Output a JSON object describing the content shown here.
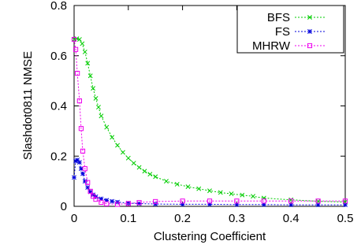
{
  "chart_data": {
    "type": "line",
    "title": "",
    "xlabel": "Clustering Coefficient",
    "ylabel": "Slashdot0811 NMSE",
    "xlim": [
      0,
      0.5
    ],
    "ylim": [
      0,
      0.8
    ],
    "xticks": [
      "0",
      "0.1",
      "0.2",
      "0.3",
      "0.4",
      "0.5"
    ],
    "yticks": [
      "0",
      "0.2",
      "0.4",
      "0.6",
      "0.8"
    ],
    "grid": false,
    "legend_position": "top-right",
    "series": [
      {
        "name": "BFS",
        "color": "#00cc00",
        "marker": "x",
        "x": [
          0,
          0.005,
          0.01,
          0.015,
          0.02,
          0.025,
          0.03,
          0.035,
          0.04,
          0.045,
          0.05,
          0.06,
          0.07,
          0.08,
          0.09,
          0.1,
          0.11,
          0.12,
          0.13,
          0.14,
          0.15,
          0.17,
          0.19,
          0.21,
          0.23,
          0.25,
          0.27,
          0.29,
          0.31,
          0.33,
          0.35,
          0.4,
          0.45,
          0.5
        ],
        "y": [
          0.665,
          0.668,
          0.665,
          0.648,
          0.615,
          0.57,
          0.52,
          0.47,
          0.43,
          0.395,
          0.36,
          0.315,
          0.275,
          0.243,
          0.215,
          0.192,
          0.172,
          0.155,
          0.14,
          0.128,
          0.118,
          0.1,
          0.088,
          0.078,
          0.07,
          0.062,
          0.055,
          0.05,
          0.045,
          0.04,
          0.033,
          0.026,
          0.02,
          0.017
        ]
      },
      {
        "name": "FS",
        "color": "#0000dd",
        "marker": "*",
        "x": [
          0,
          0.003,
          0.006,
          0.01,
          0.013,
          0.016,
          0.02,
          0.025,
          0.03,
          0.035,
          0.04,
          0.05,
          0.06,
          0.07,
          0.08,
          0.1,
          0.12,
          0.15,
          0.2,
          0.25,
          0.3,
          0.35,
          0.4,
          0.45,
          0.5
        ],
        "y": [
          0.115,
          0.18,
          0.185,
          0.175,
          0.15,
          0.13,
          0.1,
          0.075,
          0.058,
          0.046,
          0.038,
          0.03,
          0.024,
          0.02,
          0.017,
          0.013,
          0.011,
          0.009,
          0.008,
          0.008,
          0.007,
          0.007,
          0.006,
          0.006,
          0.006
        ]
      },
      {
        "name": "MHRW",
        "color": "#ee00ee",
        "marker": "square",
        "x": [
          0,
          0.003,
          0.006,
          0.01,
          0.013,
          0.016,
          0.02,
          0.025,
          0.03,
          0.035,
          0.04,
          0.05,
          0.06,
          0.08,
          0.1,
          0.12,
          0.15,
          0.2,
          0.25,
          0.3,
          0.35,
          0.4,
          0.45,
          0.5
        ],
        "y": [
          0.665,
          0.625,
          0.53,
          0.42,
          0.31,
          0.22,
          0.15,
          0.095,
          0.06,
          0.04,
          0.028,
          0.016,
          0.01,
          0.008,
          0.011,
          0.015,
          0.019,
          0.021,
          0.021,
          0.021,
          0.021,
          0.021,
          0.021,
          0.021
        ]
      }
    ]
  }
}
